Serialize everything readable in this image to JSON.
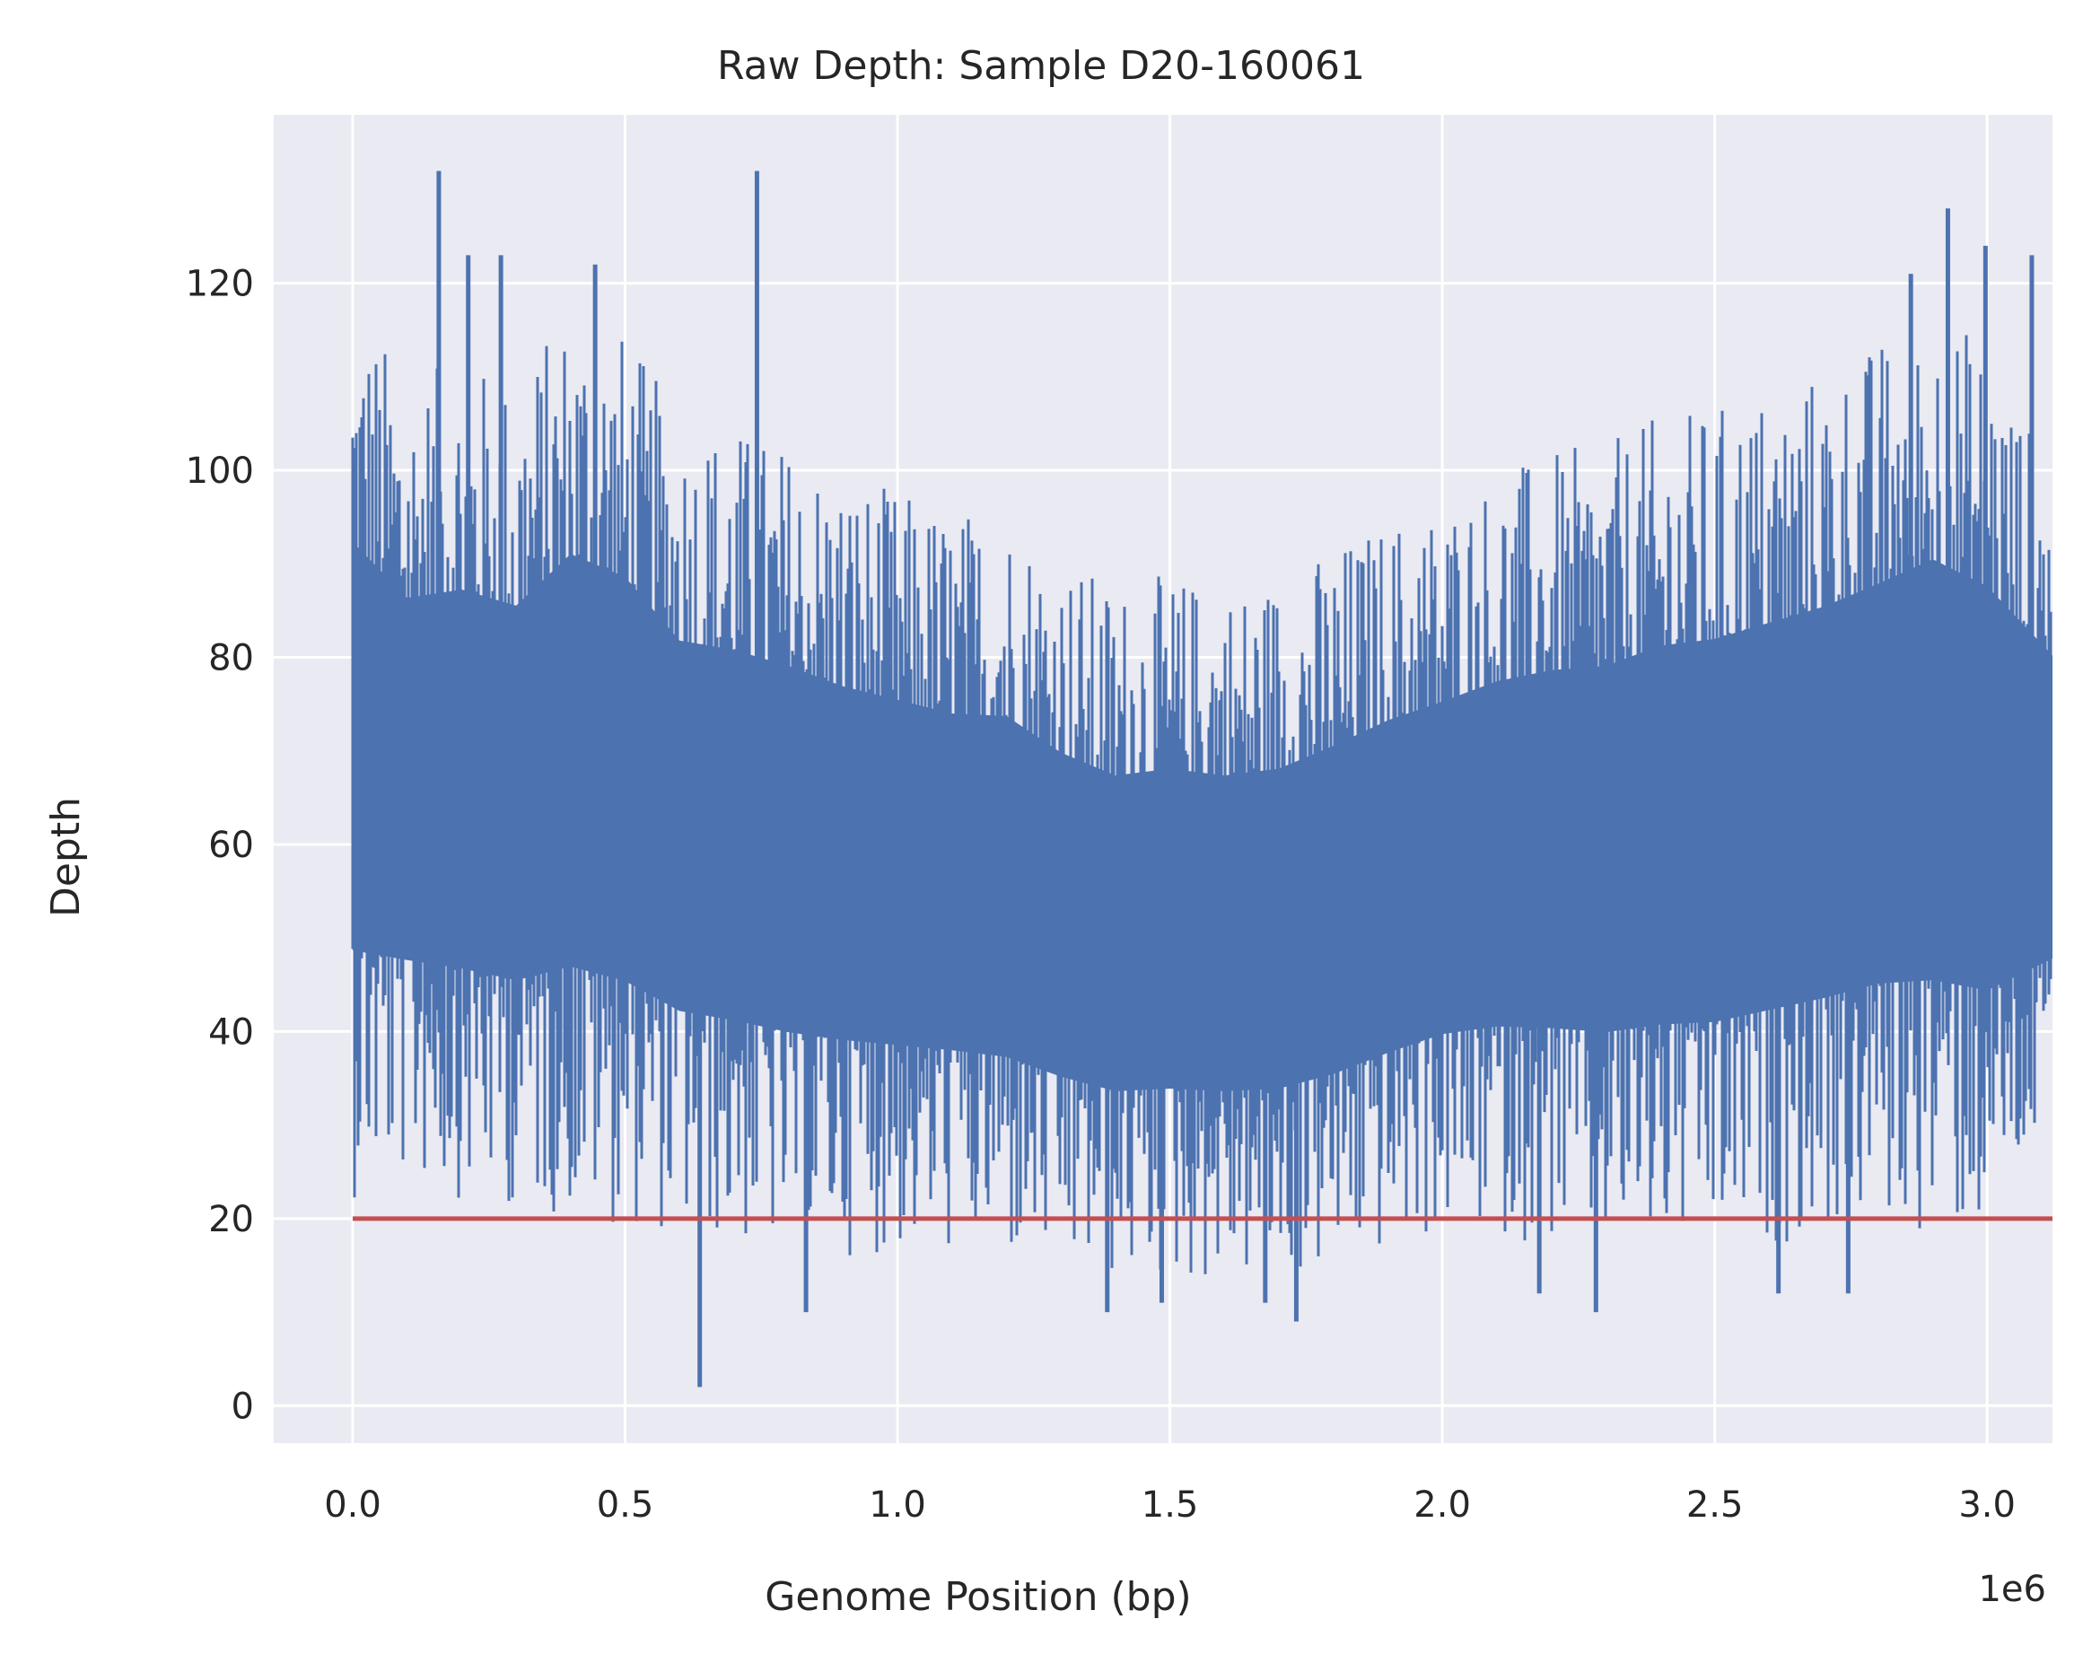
{
  "chart_data": {
    "type": "line",
    "title": "Raw Depth: Sample D20-160061",
    "xlabel": "Genome Position (bp)",
    "ylabel": "Depth",
    "x_offset_label": "1e6",
    "xlim": [
      -0.145,
      3.12
    ],
    "ylim": [
      -4,
      138
    ],
    "x_ticks": [
      0.0,
      0.5,
      1.0,
      1.5,
      2.0,
      2.5,
      3.0
    ],
    "x_tick_labels": [
      "0.0",
      "0.5",
      "1.0",
      "1.5",
      "2.0",
      "2.5",
      "3.0"
    ],
    "y_ticks": [
      0,
      20,
      40,
      60,
      80,
      100,
      120
    ],
    "y_tick_labels": [
      "0",
      "20",
      "40",
      "60",
      "80",
      "100",
      "120"
    ],
    "grid": true,
    "series": [
      {
        "color": "#4c72b0",
        "x": [
          0.0,
          0.1,
          0.2,
          0.3,
          0.4,
          0.5,
          0.6,
          0.7,
          0.8,
          0.9,
          1.0,
          1.1,
          1.2,
          1.3,
          1.4,
          1.5,
          1.6,
          1.7,
          1.8,
          1.9,
          2.0,
          2.1,
          2.2,
          2.3,
          2.4,
          2.5,
          2.6,
          2.7,
          2.8,
          2.9,
          3.0,
          3.12
        ],
        "upper": [
          119,
          110,
          112,
          110,
          118,
          115,
          106,
          105,
          103,
          100,
          98,
          96,
          96,
          91,
          88,
          89,
          88,
          89,
          92,
          95,
          97,
          100,
          102,
          103,
          106,
          107,
          109,
          111,
          114,
          118,
          114,
          100
        ],
        "lower": [
          22,
          24,
          22,
          21,
          20,
          19,
          18,
          17,
          16,
          16,
          16,
          16,
          15,
          14,
          13,
          13,
          13,
          13,
          14,
          16,
          18,
          18,
          17,
          16,
          16,
          16,
          17,
          18,
          19,
          18,
          18,
          28
        ],
        "spikes": [
          {
            "x": 0.158,
            "y": 132
          },
          {
            "x": 0.742,
            "y": 132
          },
          {
            "x": 0.212,
            "y": 123
          },
          {
            "x": 0.272,
            "y": 123
          },
          {
            "x": 0.445,
            "y": 122
          },
          {
            "x": 2.928,
            "y": 128
          },
          {
            "x": 2.997,
            "y": 124
          },
          {
            "x": 3.082,
            "y": 123
          },
          {
            "x": 2.86,
            "y": 121
          },
          {
            "x": 0.637,
            "y": 2
          },
          {
            "x": 1.732,
            "y": 9
          },
          {
            "x": 0.832,
            "y": 10
          },
          {
            "x": 1.385,
            "y": 10
          },
          {
            "x": 2.282,
            "y": 10
          },
          {
            "x": 1.485,
            "y": 11
          },
          {
            "x": 1.675,
            "y": 11
          },
          {
            "x": 2.617,
            "y": 12
          },
          {
            "x": 2.745,
            "y": 12
          },
          {
            "x": 2.178,
            "y": 12
          }
        ]
      },
      {
        "color": "#c44e52",
        "x": [
          0.0,
          3.12
        ],
        "y": [
          20,
          20
        ]
      }
    ]
  }
}
